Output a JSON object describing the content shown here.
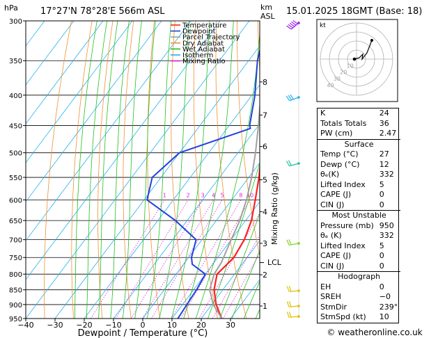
{
  "header": {
    "pressure_unit": "hPa",
    "location": "17°27'N  78°28'E  566m  ASL",
    "height_unit": "km",
    "height_unit2": "ASL",
    "datetime": "15.01.2025  18GMT  (Base: 18)"
  },
  "legend": [
    {
      "label": "Temperature",
      "color": "#ff2020"
    },
    {
      "label": "Dewpoint",
      "color": "#2040e0"
    },
    {
      "label": "Parcel Trajectory",
      "color": "#a0a0a0"
    },
    {
      "label": "Dry Adiabat",
      "color": "#f09030"
    },
    {
      "label": "Wet Adiabat",
      "color": "#20c020"
    },
    {
      "label": "Isotherm",
      "color": "#20b0f0"
    },
    {
      "label": "Mixing Ratio",
      "color": "#e020e0"
    }
  ],
  "chart_data": {
    "type": "line",
    "title": "17°27'N  78°28'E  566m  ASL",
    "xlabel": "Dewpoint / Temperature (°C)",
    "ylabel": "hPa",
    "right_label": "Mixing Ratio (g/kg)",
    "xlim": [
      -40,
      40
    ],
    "ylim": [
      950,
      300
    ],
    "x_ticks": [
      "−40",
      "−30",
      "−20",
      "−10",
      "0",
      "10",
      "20",
      "30"
    ],
    "y_ticks": [
      300,
      350,
      400,
      450,
      500,
      550,
      600,
      650,
      700,
      750,
      800,
      850,
      900,
      950
    ],
    "km_ticks": [
      {
        "p": 905,
        "label": "1"
      },
      {
        "p": 802,
        "label": "2"
      },
      {
        "p": 710,
        "label": "3"
      },
      {
        "p": 628,
        "label": "4"
      },
      {
        "p": 555,
        "label": "5"
      },
      {
        "p": 488,
        "label": "6"
      },
      {
        "p": 432,
        "label": "7"
      },
      {
        "p": 380,
        "label": "8"
      }
    ],
    "lcl": {
      "p": 765,
      "label": "LCL"
    },
    "mixing_ratio_labels": [
      "1",
      "2",
      "3",
      "4",
      "5",
      "8",
      "10",
      "15",
      "20",
      "25"
    ],
    "series": [
      {
        "name": "Temperature",
        "color": "#ff2020",
        "points": [
          [
            950,
            27
          ],
          [
            900,
            21.5
          ],
          [
            850,
            17
          ],
          [
            800,
            14
          ],
          [
            750,
            15.5
          ],
          [
            700,
            14.5
          ],
          [
            650,
            12
          ],
          [
            600,
            8
          ],
          [
            550,
            3.5
          ],
          [
            500,
            -2
          ],
          [
            450,
            -8
          ],
          [
            400,
            -14
          ],
          [
            350,
            -21.5
          ],
          [
            300,
            -30
          ]
        ]
      },
      {
        "name": "Dewpoint",
        "color": "#2040e0",
        "points": [
          [
            950,
            12
          ],
          [
            900,
            11.5
          ],
          [
            850,
            11
          ],
          [
            800,
            10
          ],
          [
            770,
            3
          ],
          [
            750,
            1
          ],
          [
            700,
            -2
          ],
          [
            650,
            -14
          ],
          [
            600,
            -29
          ],
          [
            550,
            -33
          ],
          [
            500,
            -30
          ],
          [
            455,
            -12
          ],
          [
            450,
            -13
          ],
          [
            400,
            -19
          ],
          [
            350,
            -27
          ],
          [
            300,
            -34
          ]
        ]
      },
      {
        "name": "Parcel Trajectory",
        "color": "#a0a0a0",
        "points": [
          [
            950,
            27
          ],
          [
            900,
            20.5
          ],
          [
            850,
            15.5
          ],
          [
            800,
            13
          ],
          [
            765,
            12.5
          ],
          [
            700,
            10
          ],
          [
            650,
            8
          ],
          [
            600,
            5
          ],
          [
            550,
            1
          ],
          [
            500,
            -4
          ],
          [
            450,
            -10
          ],
          [
            400,
            -17
          ],
          [
            350,
            -25
          ],
          [
            300,
            -34
          ]
        ]
      }
    ]
  },
  "hodograph": {
    "unit_label": "kt",
    "ring_labels": [
      "10",
      "20",
      "30",
      "40"
    ]
  },
  "stats": {
    "k": {
      "label": "K",
      "value": "24"
    },
    "tt": {
      "label": "Totals Totals",
      "value": "36"
    },
    "pw": {
      "label": "PW (cm)",
      "value": "2.47"
    },
    "surface": {
      "title": "Surface",
      "temp": {
        "label": "Temp (°C)",
        "value": "27"
      },
      "dewp": {
        "label": "Dewp (°C)",
        "value": "12"
      },
      "thetae": {
        "label": "θₑ(K)",
        "value": "332"
      },
      "li": {
        "label": "Lifted Index",
        "value": "5"
      },
      "cape": {
        "label": "CAPE (J)",
        "value": "0"
      },
      "cin": {
        "label": "CIN (J)",
        "value": "0"
      }
    },
    "mu": {
      "title": "Most Unstable",
      "pressure": {
        "label": "Pressure (mb)",
        "value": "950"
      },
      "thetae": {
        "label": "θₑ (K)",
        "value": "332"
      },
      "li": {
        "label": "Lifted Index",
        "value": "5"
      },
      "cape": {
        "label": "CAPE (J)",
        "value": "0"
      },
      "cin": {
        "label": "CIN (J)",
        "value": "0"
      }
    },
    "hodo": {
      "title": "Hodograph",
      "eh": {
        "label": "EH",
        "value": "0"
      },
      "sreh": {
        "label": "SREH",
        "value": "−0"
      },
      "stmdir": {
        "label": "StmDir",
        "value": "239°"
      },
      "stmspd": {
        "label": "StmSpd (kt)",
        "value": "10"
      }
    }
  },
  "footer": {
    "copyright": "© weatheronline.co.uk"
  }
}
